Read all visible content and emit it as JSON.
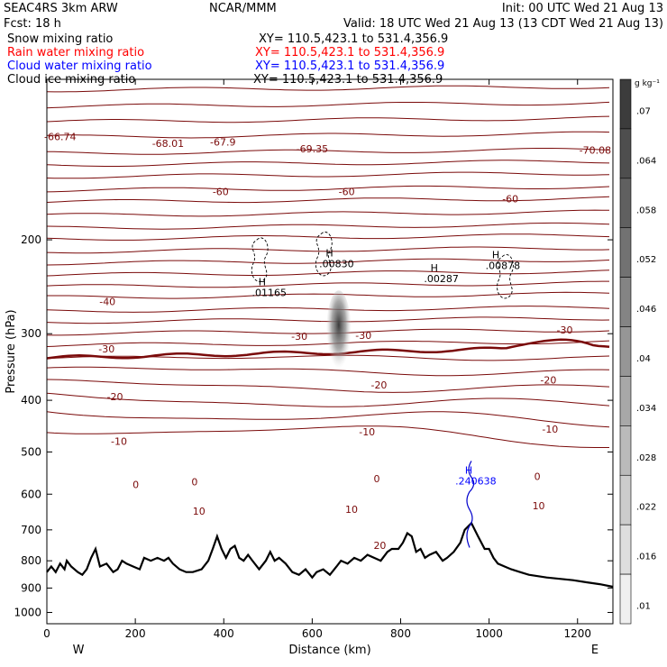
{
  "header": {
    "model": "SEAC4RS  3km ARW",
    "source": "NCAR/MMM",
    "init": "Init: 00 UTC Wed 21 Aug 13",
    "fcst": "Fcst:   18 h",
    "valid": "Valid: 18 UTC Wed 21 Aug 13 (13 CDT Wed 21 Aug 13)",
    "fields": [
      {
        "name": "Snow mixing ratio",
        "xy": "XY= 110.5,423.1 to 531.4,356.9",
        "color": "#000000"
      },
      {
        "name": "Rain water mixing ratio",
        "xy": "XY= 110.5,423.1 to 531.4,356.9",
        "color": "#ff0000"
      },
      {
        "name": "Cloud water mixing ratio",
        "xy": "XY= 110.5,423.1 to 531.4,356.9",
        "color": "#0000ff"
      },
      {
        "name": "Cloud ice mixing ratio",
        "xy": "XY= 110.5,423.1 to 531.4,356.9",
        "color": "#000000"
      }
    ]
  },
  "colorbar": {
    "unit": "g kg⁻¹",
    "ticks": [
      ".07",
      ".064",
      ".058",
      ".052",
      ".046",
      ".04",
      ".034",
      ".028",
      ".022",
      ".016",
      ".01"
    ]
  },
  "chart_data": {
    "type": "contour",
    "xlabel": "Distance (km)",
    "ylabel": "Pressure (hPa)",
    "xlim": [
      0,
      1280
    ],
    "ylim": [
      1050,
      100
    ],
    "y_scale": "log",
    "x_ticks": [
      0,
      200,
      400,
      600,
      800,
      1000,
      1200
    ],
    "y_ticks": [
      200,
      300,
      400,
      500,
      600,
      700,
      800,
      900,
      1000
    ],
    "direction_labels": {
      "left": "W",
      "right": "E"
    },
    "temperature_contour_labels": [
      {
        "x": 30,
        "p": 130,
        "text": "-66.74"
      },
      {
        "x": 274,
        "p": 134,
        "text": "-68.01"
      },
      {
        "x": 398,
        "p": 133,
        "text": "-67.9"
      },
      {
        "x": 600,
        "p": 137,
        "text": "-69.35"
      },
      {
        "x": 1240,
        "p": 138,
        "text": "-70.08"
      },
      {
        "x": 393,
        "p": 165,
        "text": "-60"
      },
      {
        "x": 678,
        "p": 165,
        "text": "-60"
      },
      {
        "x": 1048,
        "p": 170,
        "text": "-60"
      },
      {
        "x": 137,
        "p": 265,
        "text": "-40"
      },
      {
        "x": 135,
        "p": 325,
        "text": "-30"
      },
      {
        "x": 571,
        "p": 308,
        "text": "-30"
      },
      {
        "x": 716,
        "p": 307,
        "text": "-30"
      },
      {
        "x": 1171,
        "p": 300,
        "text": "-30"
      },
      {
        "x": 154,
        "p": 400,
        "text": "-20"
      },
      {
        "x": 751,
        "p": 380,
        "text": "-20"
      },
      {
        "x": 1134,
        "p": 372,
        "text": "-20"
      },
      {
        "x": 163,
        "p": 485,
        "text": "-10"
      },
      {
        "x": 724,
        "p": 465,
        "text": "-10"
      },
      {
        "x": 1138,
        "p": 460,
        "text": "-10"
      },
      {
        "x": 201,
        "p": 584,
        "text": "0"
      },
      {
        "x": 334,
        "p": 578,
        "text": "0"
      },
      {
        "x": 746,
        "p": 570,
        "text": "0"
      },
      {
        "x": 1109,
        "p": 564,
        "text": "0"
      },
      {
        "x": 344,
        "p": 655,
        "text": "10"
      },
      {
        "x": 689,
        "p": 650,
        "text": "10"
      },
      {
        "x": 1112,
        "p": 640,
        "text": "10"
      },
      {
        "x": 753,
        "p": 760,
        "text": "20"
      }
    ],
    "maxima_labels": [
      {
        "x": 503,
        "p": 255,
        "text": ".01165",
        "color": "#000000"
      },
      {
        "x": 655,
        "p": 225,
        "text": ".00830",
        "color": "#000000"
      },
      {
        "x": 892,
        "p": 240,
        "text": ".00287",
        "color": "#000000"
      },
      {
        "x": 1031,
        "p": 227,
        "text": ".00878",
        "color": "#000000"
      },
      {
        "x": 970,
        "p": 575,
        "text": ".240638",
        "color": "#0000ff"
      }
    ]
  }
}
